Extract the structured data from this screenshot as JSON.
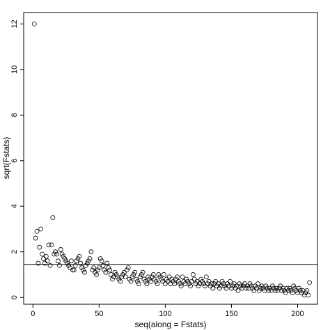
{
  "chart_data": {
    "type": "scatter",
    "title": "",
    "xlabel": "seq(along = Fstats)",
    "ylabel": "sqrt(Fstats)",
    "xlim": [
      -7,
      215
    ],
    "ylim": [
      -0.3,
      12.5
    ],
    "xticks": [
      0,
      50,
      100,
      150,
      200
    ],
    "yticks": [
      0,
      2,
      4,
      6,
      8,
      10,
      12
    ],
    "grid": false,
    "hline": 1.45,
    "series": [
      {
        "values": [
          12.0,
          2.6,
          2.9,
          1.5,
          2.2,
          3.0,
          1.9,
          1.7,
          1.5,
          1.8,
          1.6,
          2.3,
          1.4,
          2.3,
          3.5,
          1.9,
          2.0,
          1.9,
          1.6,
          1.4,
          2.1,
          1.9,
          1.8,
          1.7,
          1.6,
          1.5,
          1.4,
          1.3,
          1.6,
          1.2,
          1.2,
          1.4,
          1.6,
          1.7,
          1.8,
          1.5,
          1.3,
          1.2,
          1.1,
          1.4,
          1.5,
          1.6,
          1.7,
          2.0,
          1.2,
          1.3,
          1.1,
          1.0,
          1.2,
          1.3,
          1.7,
          1.6,
          1.4,
          1.2,
          1.1,
          1.5,
          1.3,
          1.2,
          1.0,
          0.8,
          0.9,
          1.1,
          1.0,
          0.9,
          0.8,
          0.7,
          0.9,
          1.0,
          1.1,
          0.9,
          1.2,
          1.3,
          0.8,
          0.7,
          0.9,
          1.0,
          1.1,
          0.8,
          0.7,
          0.6,
          0.9,
          1.0,
          1.1,
          0.8,
          0.7,
          0.6,
          0.9,
          0.8,
          0.7,
          0.9,
          1.0,
          0.8,
          0.7,
          0.6,
          1.0,
          0.9,
          0.8,
          0.7,
          1.0,
          0.6,
          0.8,
          0.7,
          0.9,
          0.6,
          0.8,
          0.7,
          0.6,
          0.8,
          0.9,
          0.7,
          0.6,
          0.5,
          0.9,
          0.7,
          0.6,
          0.8,
          0.7,
          0.6,
          0.5,
          0.7,
          1.0,
          0.8,
          0.6,
          0.7,
          0.5,
          0.6,
          0.8,
          0.7,
          0.6,
          0.5,
          0.9,
          0.6,
          0.7,
          0.5,
          0.6,
          0.4,
          0.6,
          0.7,
          0.5,
          0.6,
          0.4,
          0.5,
          0.7,
          0.6,
          0.5,
          0.4,
          0.6,
          0.5,
          0.7,
          0.4,
          0.5,
          0.6,
          0.4,
          0.5,
          0.3,
          0.6,
          0.5,
          0.4,
          0.5,
          0.6,
          0.4,
          0.5,
          0.4,
          0.6,
          0.5,
          0.4,
          0.3,
          0.5,
          0.4,
          0.6,
          0.3,
          0.4,
          0.5,
          0.4,
          0.3,
          0.5,
          0.4,
          0.3,
          0.4,
          0.3,
          0.5,
          0.4,
          0.3,
          0.4,
          0.3,
          0.4,
          0.5,
          0.3,
          0.4,
          0.3,
          0.2,
          0.4,
          0.3,
          0.4,
          0.3,
          0.2,
          0.5,
          0.4,
          0.3,
          0.2,
          0.4,
          0.3,
          0.2,
          0.3,
          0.1,
          0.2,
          0.3,
          0.1,
          0.65
        ]
      }
    ]
  }
}
